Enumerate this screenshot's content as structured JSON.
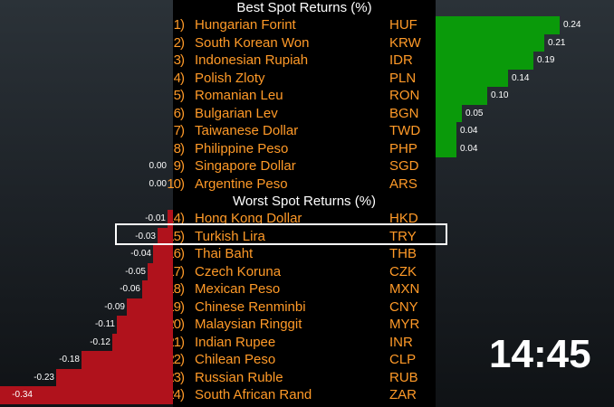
{
  "best_header": "Best Spot Returns (%)",
  "worst_header": "Worst Spot Returns (%)",
  "clock": "14:45",
  "colors": {
    "positive": "#0a9a0a",
    "negative": "#b0121c",
    "text": "#ff9a28"
  },
  "highlighted_code": "TRY",
  "chart_data": [
    {
      "type": "bar",
      "title": "Best Spot Returns (%)",
      "categories": [
        "Hungarian Forint",
        "South Korean Won",
        "Indonesian Rupiah",
        "Polish Zloty",
        "Romanian Leu",
        "Bulgarian Lev",
        "Taiwanese Dollar",
        "Philippine Peso",
        "Singapore Dollar",
        "Argentine Peso"
      ],
      "ranks": [
        "1)",
        "2)",
        "3)",
        "4)",
        "5)",
        "6)",
        "7)",
        "8)",
        "9)",
        "10)"
      ],
      "codes": [
        "HUF",
        "KRW",
        "IDR",
        "PLN",
        "RON",
        "BGN",
        "TWD",
        "PHP",
        "SGD",
        "ARS"
      ],
      "values": [
        0.24,
        0.21,
        0.19,
        0.14,
        0.1,
        0.05,
        0.04,
        0.04,
        0.0,
        0.0
      ],
      "value_labels": [
        "0.24",
        "0.21",
        "0.19",
        "0.14",
        "0.10",
        "0.05",
        "0.04",
        "0.04",
        "0.00",
        "0.00"
      ]
    },
    {
      "type": "bar",
      "title": "Worst Spot Returns (%)",
      "categories": [
        "Hong Kong Dollar",
        "Turkish Lira",
        "Thai Baht",
        "Czech Koruna",
        "Mexican Peso",
        "Chinese Renminbi",
        "Malaysian Ringgit",
        "Indian Rupee",
        "Chilean Peso",
        "Russian Ruble",
        "South African Rand"
      ],
      "ranks": [
        "14)",
        "15)",
        "16)",
        "17)",
        "18)",
        "19)",
        "20)",
        "21)",
        "22)",
        "23)",
        "24)"
      ],
      "codes": [
        "HKD",
        "TRY",
        "THB",
        "CZK",
        "MXN",
        "CNY",
        "MYR",
        "INR",
        "CLP",
        "RUB",
        "ZAR"
      ],
      "values": [
        -0.01,
        -0.03,
        -0.04,
        -0.05,
        -0.06,
        -0.09,
        -0.11,
        -0.12,
        -0.18,
        -0.23,
        -0.34
      ],
      "value_labels": [
        "-0.01",
        "-0.03",
        "-0.04",
        "-0.05",
        "-0.06",
        "-0.09",
        "-0.11",
        "-0.12",
        "-0.18",
        "-0.23",
        "-0.34"
      ]
    }
  ]
}
